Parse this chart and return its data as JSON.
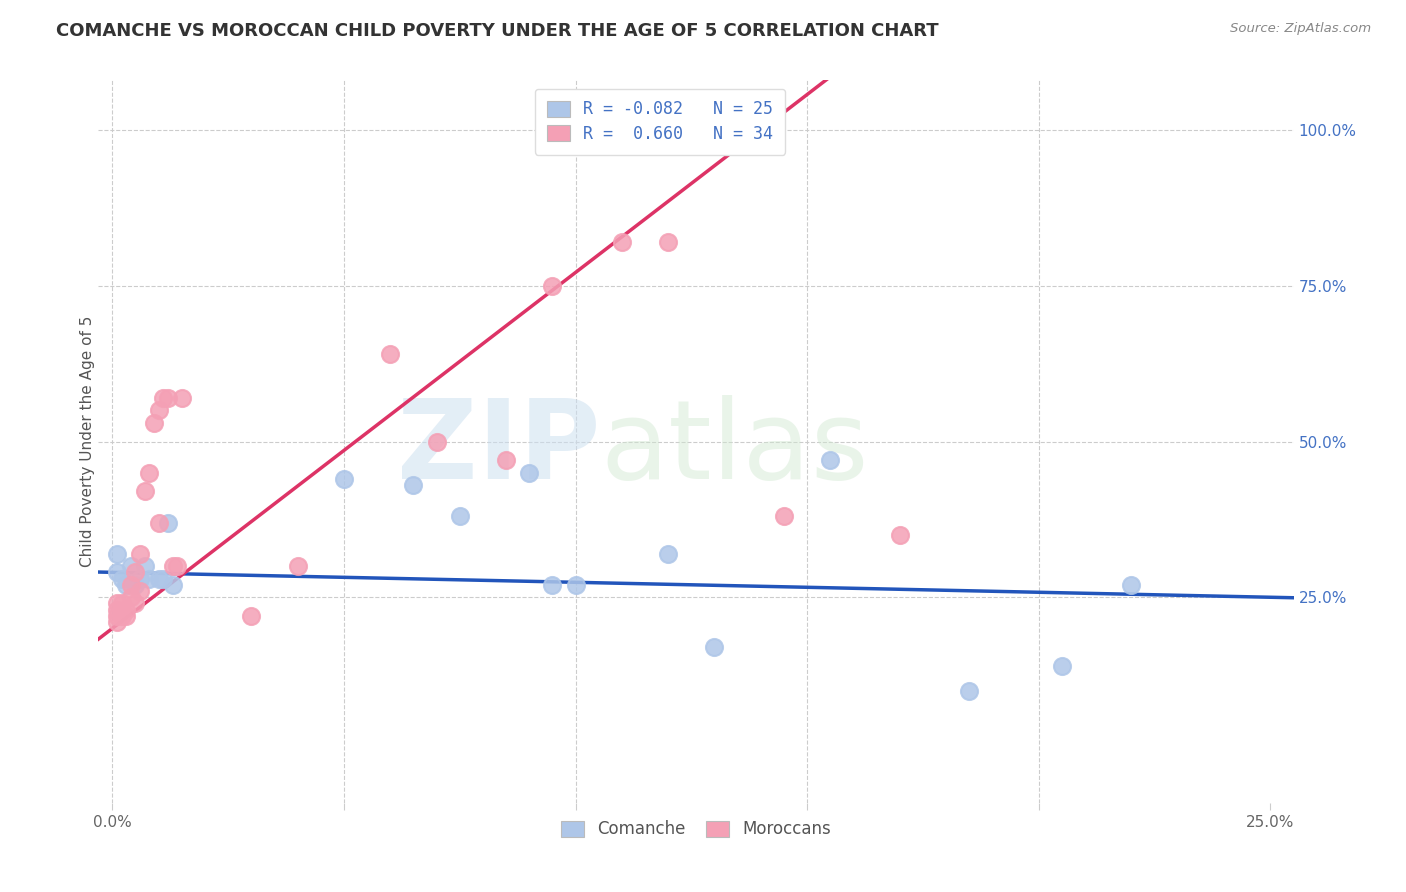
{
  "title": "COMANCHE VS MOROCCAN CHILD POVERTY UNDER THE AGE OF 5 CORRELATION CHART",
  "source": "Source: ZipAtlas.com",
  "ylabel": "Child Poverty Under the Age of 5",
  "xlim": [
    -0.003,
    0.255
  ],
  "ylim": [
    -0.08,
    1.08
  ],
  "xtick_vals": [
    0.0,
    0.05,
    0.1,
    0.15,
    0.2,
    0.25
  ],
  "xtick_labels": [
    "0.0%",
    "",
    "",
    "",
    "",
    "25.0%"
  ],
  "ytick_vals": [
    0.25,
    0.5,
    0.75,
    1.0
  ],
  "ytick_labels": [
    "25.0%",
    "50.0%",
    "75.0%",
    "100.0%"
  ],
  "comanche_R": -0.082,
  "comanche_N": 25,
  "moroccan_R": 0.66,
  "moroccan_N": 34,
  "comanche_color": "#aec6e8",
  "moroccan_color": "#f4a0b5",
  "comanche_line_color": "#2255bb",
  "moroccan_line_color": "#dd3366",
  "comanche_x": [
    0.001,
    0.001,
    0.002,
    0.003,
    0.004,
    0.005,
    0.006,
    0.007,
    0.008,
    0.01,
    0.011,
    0.012,
    0.013,
    0.05,
    0.065,
    0.075,
    0.09,
    0.095,
    0.1,
    0.12,
    0.13,
    0.155,
    0.185,
    0.205,
    0.22
  ],
  "comanche_y": [
    0.29,
    0.32,
    0.28,
    0.27,
    0.3,
    0.27,
    0.28,
    0.3,
    0.28,
    0.28,
    0.28,
    0.37,
    0.27,
    0.44,
    0.43,
    0.38,
    0.45,
    0.27,
    0.27,
    0.32,
    0.17,
    0.47,
    0.1,
    0.14,
    0.27
  ],
  "moroccan_x": [
    0.001,
    0.001,
    0.001,
    0.001,
    0.002,
    0.002,
    0.003,
    0.003,
    0.004,
    0.004,
    0.005,
    0.005,
    0.006,
    0.006,
    0.007,
    0.008,
    0.009,
    0.01,
    0.01,
    0.011,
    0.012,
    0.013,
    0.014,
    0.015,
    0.03,
    0.04,
    0.06,
    0.07,
    0.085,
    0.095,
    0.11,
    0.12,
    0.145,
    0.17
  ],
  "moroccan_y": [
    0.21,
    0.22,
    0.23,
    0.24,
    0.22,
    0.24,
    0.22,
    0.23,
    0.25,
    0.27,
    0.24,
    0.29,
    0.26,
    0.32,
    0.42,
    0.45,
    0.53,
    0.37,
    0.55,
    0.57,
    0.57,
    0.3,
    0.3,
    0.57,
    0.22,
    0.3,
    0.64,
    0.5,
    0.47,
    0.75,
    0.82,
    0.82,
    0.38,
    0.35
  ],
  "legend_label_comanche": "Comanche",
  "legend_label_moroccan": "Moroccans",
  "com_line_slope": 4.5,
  "com_line_intercept": 0.285,
  "mor_line_slope": 45.0,
  "mor_line_intercept": 0.22
}
